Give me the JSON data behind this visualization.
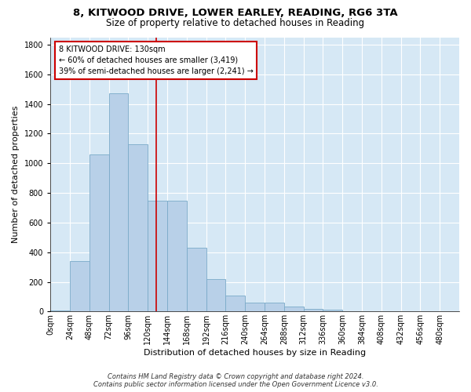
{
  "title_line1": "8, KITWOOD DRIVE, LOWER EARLEY, READING, RG6 3TA",
  "title_line2": "Size of property relative to detached houses in Reading",
  "xlabel": "Distribution of detached houses by size in Reading",
  "ylabel": "Number of detached properties",
  "bar_categories": [
    "0sqm",
    "24sqm",
    "48sqm",
    "72sqm",
    "96sqm",
    "120sqm",
    "144sqm",
    "168sqm",
    "192sqm",
    "216sqm",
    "240sqm",
    "264sqm",
    "288sqm",
    "312sqm",
    "336sqm",
    "360sqm",
    "384sqm",
    "408sqm",
    "432sqm",
    "456sqm",
    "480sqm"
  ],
  "bar_values": [
    10,
    340,
    1060,
    1470,
    1130,
    750,
    750,
    430,
    220,
    110,
    60,
    60,
    35,
    20,
    15,
    0,
    0,
    0,
    0,
    0,
    0
  ],
  "bar_color": "#b8d0e8",
  "bar_edge_color": "#7aaac8",
  "property_line_x": 5.42,
  "property_line_color": "#cc0000",
  "annotation_text": "8 KITWOOD DRIVE: 130sqm\n← 60% of detached houses are smaller (3,419)\n39% of semi-detached houses are larger (2,241) →",
  "annotation_box_color": "#ffffff",
  "annotation_box_edge": "#cc0000",
  "ylim": [
    0,
    1850
  ],
  "yticks": [
    0,
    200,
    400,
    600,
    800,
    1000,
    1200,
    1400,
    1600,
    1800
  ],
  "grid_color": "#ffffff",
  "bg_color": "#d6e8f5",
  "fig_bg_color": "#ffffff",
  "footnote": "Contains HM Land Registry data © Crown copyright and database right 2024.\nContains public sector information licensed under the Open Government Licence v3.0.",
  "title_fontsize": 9.5,
  "subtitle_fontsize": 8.5,
  "label_fontsize": 8,
  "tick_fontsize": 7,
  "annot_fontsize": 7
}
